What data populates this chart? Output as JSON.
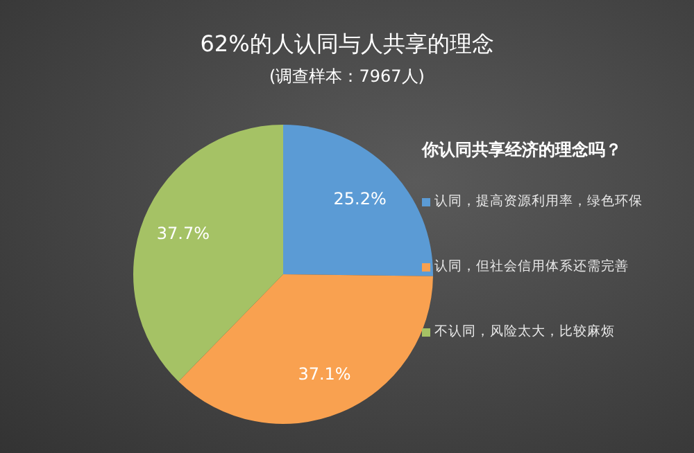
{
  "chart_data": {
    "type": "pie",
    "title": "62%的人认同与人共享的理念",
    "subtitle": "(调查样本：7967人)",
    "legend_title": "你认同共享经济的理念吗？",
    "categories": [
      "认同，提高资源利用率，绿色环保",
      "认同，但社会信用体系还需完善",
      "不认同，风险太大，比较麻烦"
    ],
    "values": [
      25.2,
      37.1,
      37.7
    ],
    "colors": [
      "#5b9bd5",
      "#f9a150",
      "#a5c265"
    ],
    "value_labels": [
      "25.2%",
      "37.1%",
      "37.7%"
    ],
    "legend": "right"
  }
}
